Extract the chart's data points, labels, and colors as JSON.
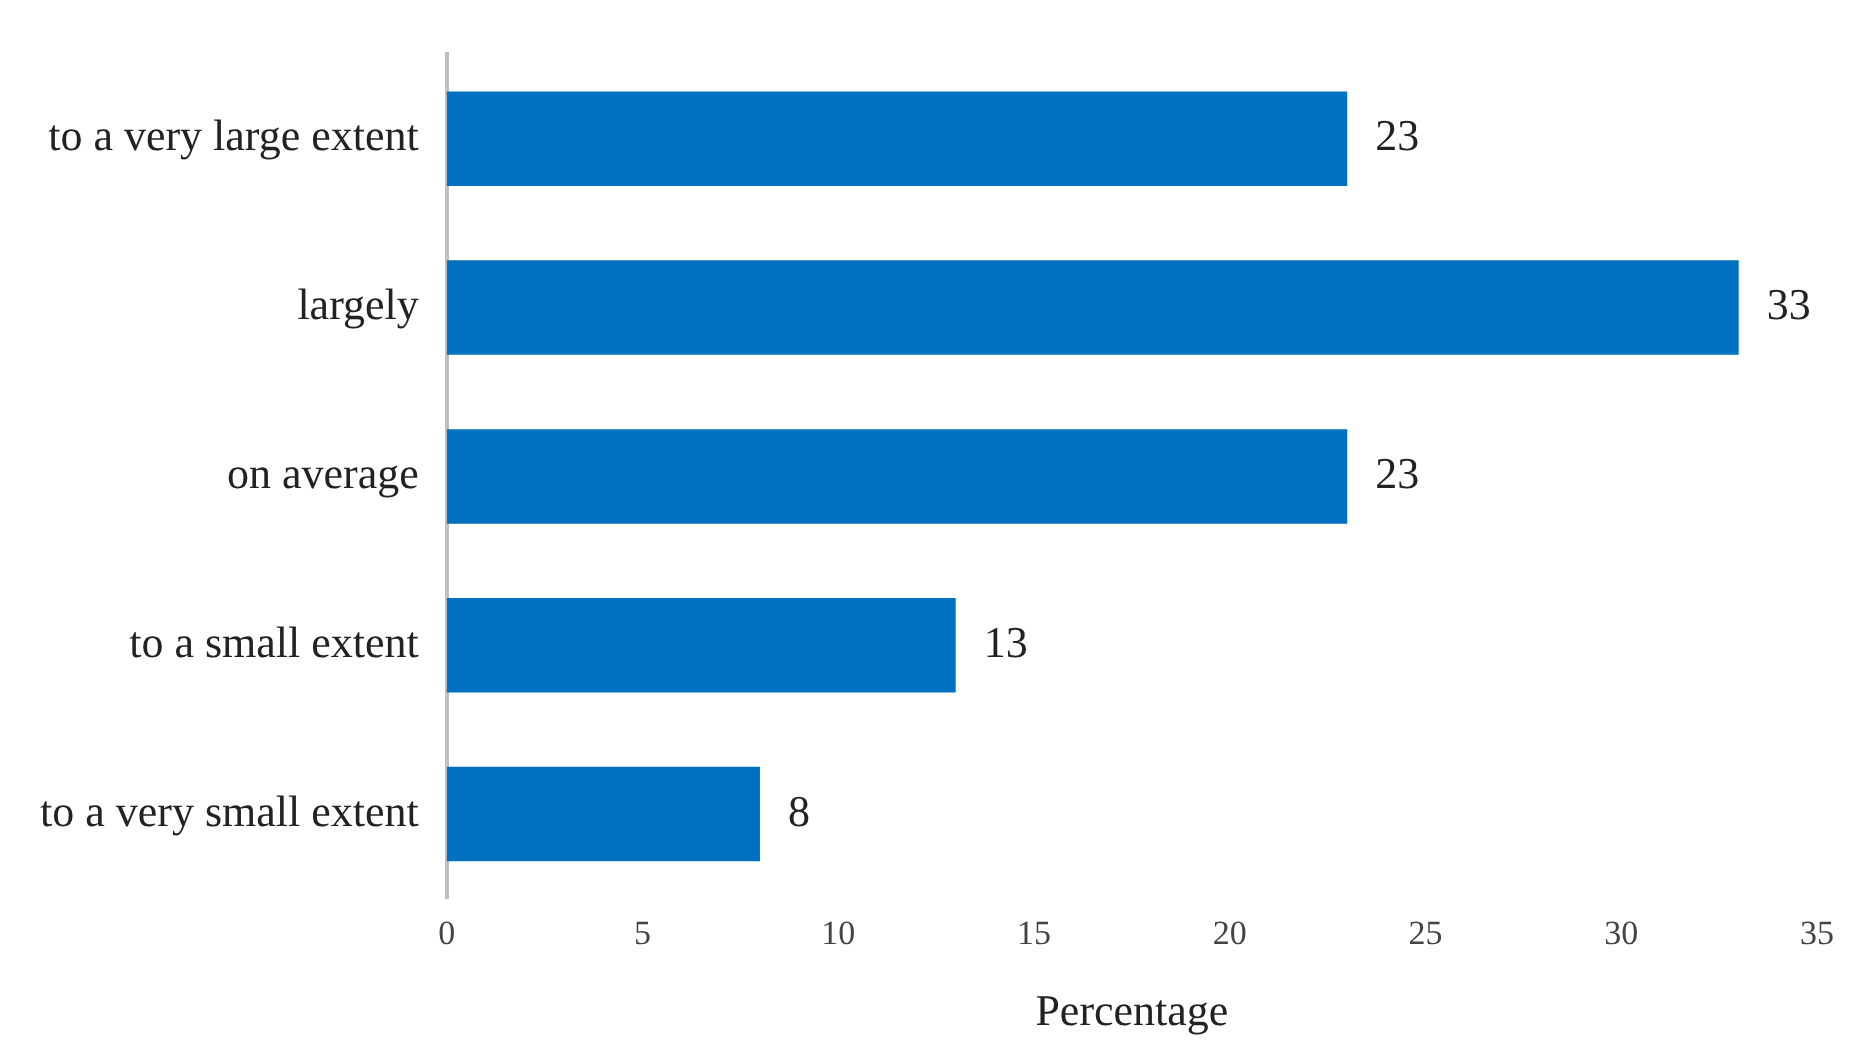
{
  "chart_data": {
    "type": "bar",
    "orientation": "horizontal",
    "xlabel": "Percentage",
    "categories": [
      "to a very large extent",
      "largely",
      "on average",
      "to a small extent",
      "to a very small extent"
    ],
    "values": [
      23,
      33,
      23,
      13,
      8
    ],
    "color": "#0070c0",
    "xlim": [
      0,
      35
    ],
    "xticks": [
      0,
      5,
      10,
      15,
      20,
      25,
      30,
      35
    ],
    "grid": false,
    "legend": false,
    "data_labels": true
  }
}
